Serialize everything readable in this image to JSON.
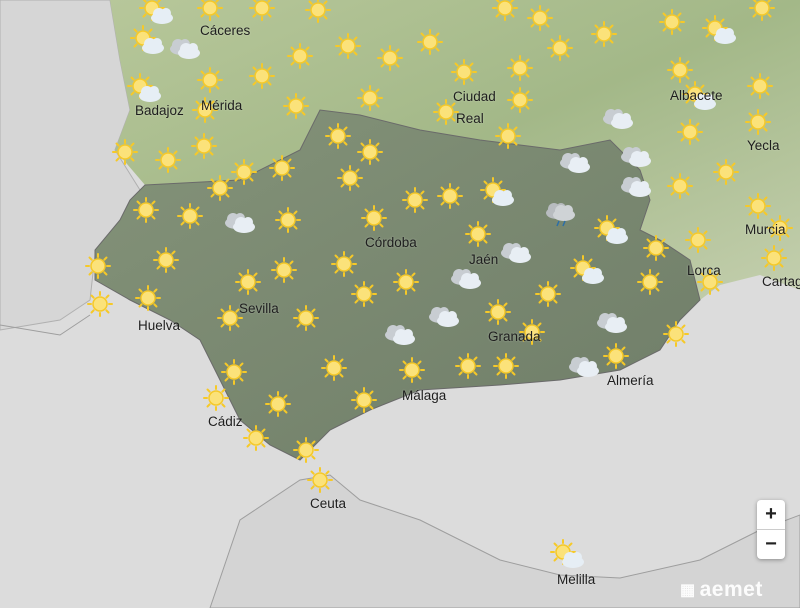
{
  "map": {
    "cities": {
      "caceres": "Cáceres",
      "badajoz": "Badajoz",
      "merida": "Mérida",
      "ciudad_real_1": "Ciudad",
      "ciudad_real_2": "Real",
      "albacete": "Albacete",
      "yecla": "Yecla",
      "murcia": "Murcia",
      "lorca": "Lorca",
      "cartagena": "Cartagena",
      "cordoba": "Córdoba",
      "jaen": "Jaén",
      "sevilla": "Sevilla",
      "huelva": "Huelva",
      "granada": "Granada",
      "almeria": "Almería",
      "malaga": "Málaga",
      "cadiz": "Cádiz",
      "ceuta": "Ceuta",
      "melilla": "Melilla"
    },
    "icon_types": [
      "sun-icon",
      "sun-cloud-icon",
      "cloud-icon",
      "rain-cloud-icon"
    ],
    "colors": {
      "sea": "#dcdcdc",
      "andalusia": "#7d8b74",
      "terrain": "#a9bc8c",
      "sun": "#f6c928"
    }
  },
  "controls": {
    "zoom_in": "+",
    "zoom_out": "−"
  },
  "branding": {
    "logo": "aemet"
  }
}
